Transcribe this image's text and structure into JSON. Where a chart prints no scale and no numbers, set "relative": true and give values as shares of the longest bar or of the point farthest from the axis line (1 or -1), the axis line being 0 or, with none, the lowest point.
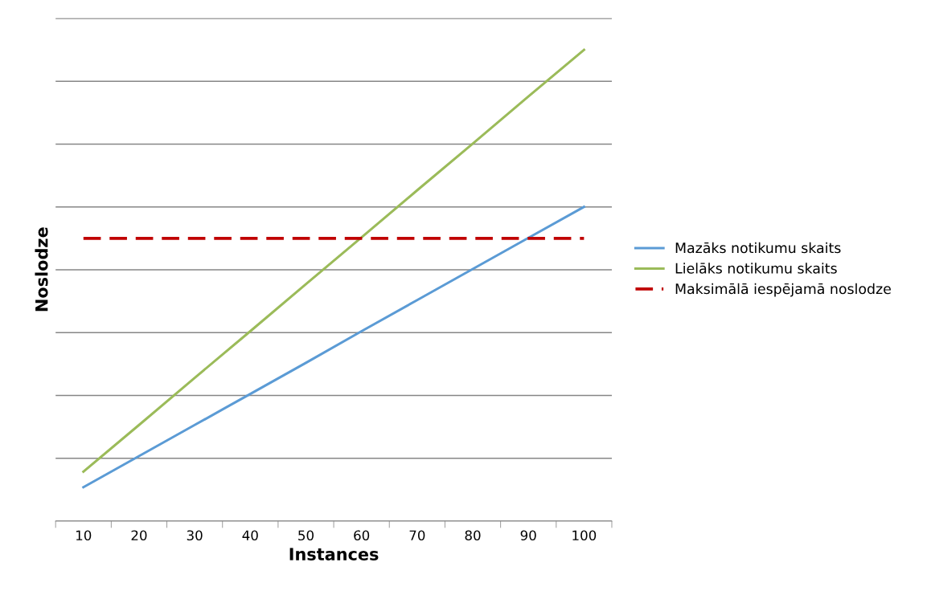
{
  "chart_data": {
    "type": "line",
    "relative": true,
    "xlabel": "Instances",
    "ylabel": "Noslodze",
    "grid": "y",
    "legend": "right",
    "marker": "none",
    "categories": [
      "10",
      "20",
      "30",
      "40",
      "50",
      "60",
      "70",
      "80",
      "90",
      "100"
    ],
    "series": [
      {
        "name": "Mazāks notikumu skaits",
        "color": "#5b9bd5",
        "values": [
          0.072,
          0.138,
          0.204,
          0.27,
          0.336,
          0.403,
          0.469,
          0.535,
          0.601,
          0.667
        ]
      },
      {
        "name": "Lielāks notikumu skaits",
        "color": "#9bbb59",
        "values": [
          0.105,
          0.204,
          0.304,
          0.403,
          0.503,
          0.602,
          0.702,
          0.801,
          0.901,
          1.0
        ]
      },
      {
        "name": "Maksimālā iespējamā noslodze",
        "color": "#c00000",
        "line_style": "dashed",
        "values": [
          0.6,
          0.6,
          0.6,
          0.6,
          0.6,
          0.6,
          0.6,
          0.6,
          0.6,
          0.6
        ]
      }
    ]
  }
}
